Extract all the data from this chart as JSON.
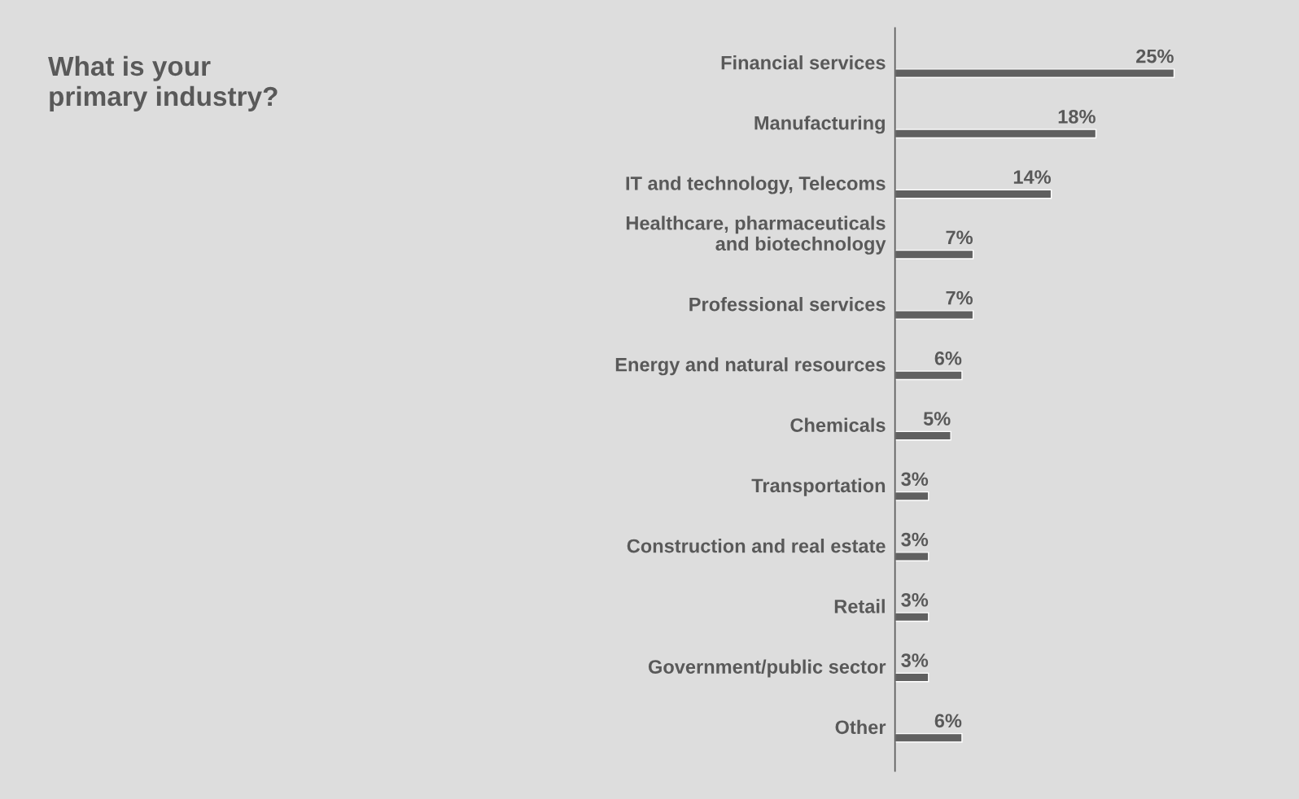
{
  "chart_data": {
    "type": "bar",
    "orientation": "horizontal",
    "title": "What is your\nprimary industry?",
    "categories": [
      "Financial services",
      "Manufacturing",
      "IT and technology, Telecoms",
      "Healthcare, pharmaceuticals\nand biotechnology",
      "Professional services",
      "Energy and natural resources",
      "Chemicals",
      "Transportation",
      "Construction and real estate",
      "Retail",
      "Government/public sector",
      "Other"
    ],
    "values": [
      25,
      18,
      14,
      7,
      7,
      6,
      5,
      3,
      3,
      3,
      3,
      6
    ],
    "value_labels": [
      "25%",
      "18%",
      "14%",
      "7%",
      "7%",
      "6%",
      "5%",
      "3%",
      "3%",
      "3%",
      "3%",
      "6%"
    ],
    "color": "#606060",
    "grid": false,
    "legend": false,
    "tick_labels": "y"
  }
}
